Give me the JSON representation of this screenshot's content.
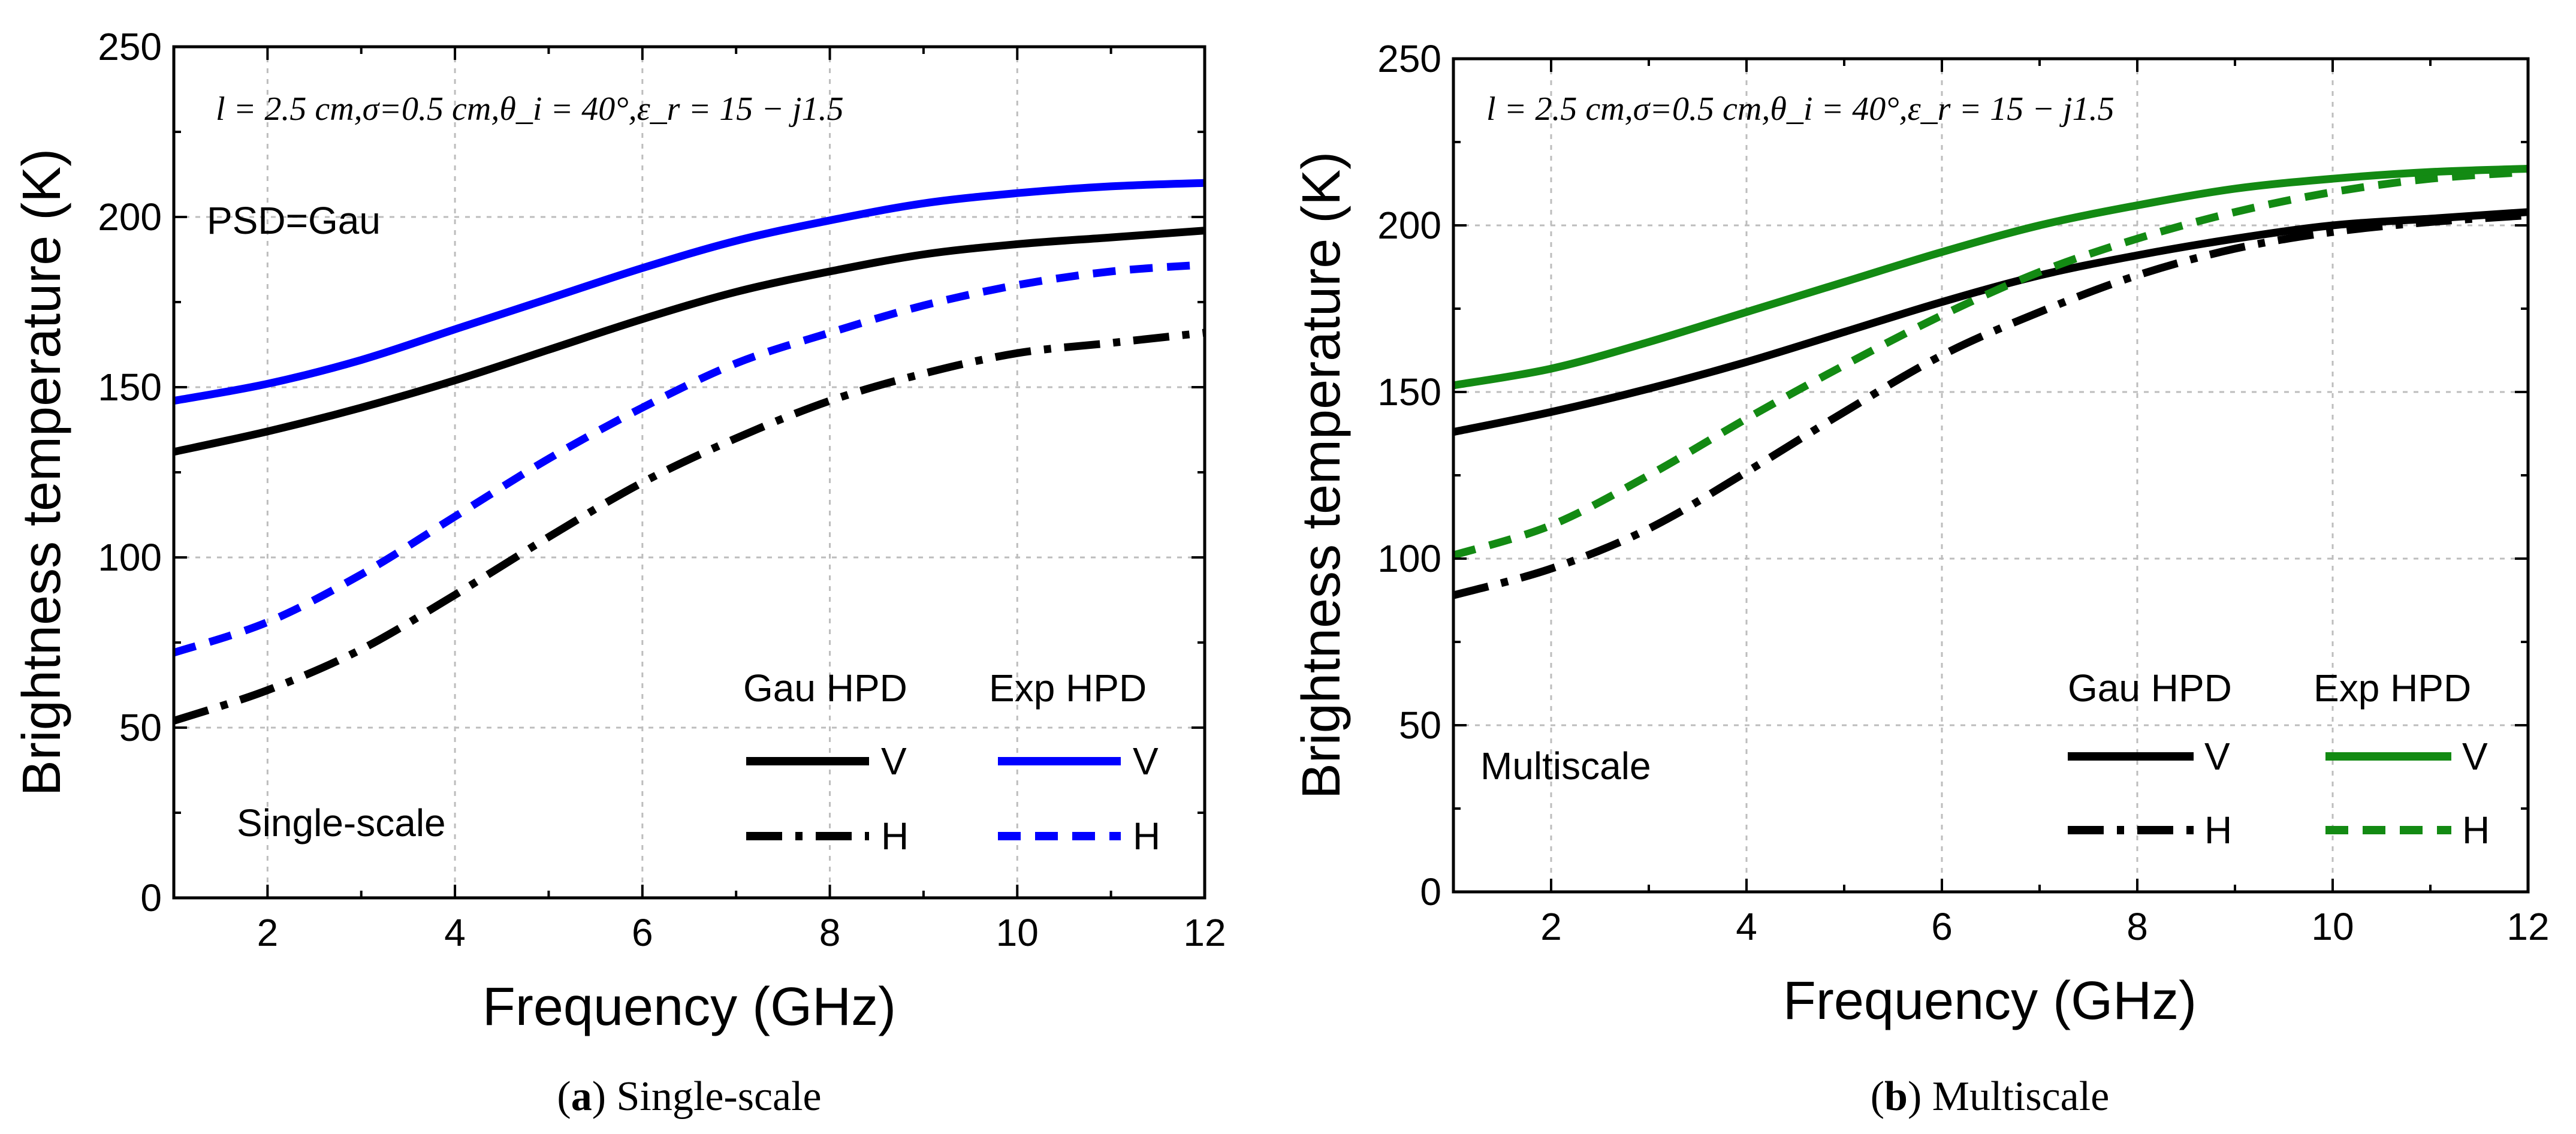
{
  "chart_data": [
    {
      "type": "line",
      "id": "a",
      "xlabel": "Frequency (GHz)",
      "ylabel": "Brightness temperature (K)",
      "xlim": [
        1,
        12
      ],
      "ylim": [
        0,
        250
      ],
      "xticks": [
        2,
        4,
        6,
        8,
        10,
        12
      ],
      "yticks": [
        0,
        50,
        100,
        150,
        200,
        250
      ],
      "grid": true,
      "annotation": "l = 2.5 cm,σ=0.5 cm,θ_i = 40°,ε_r = 15 − j1.5",
      "psd_label": "PSD=Gau",
      "scale_label": "Single-scale",
      "legend_header_left": "Gau HPD",
      "legend_header_right": "Exp HPD",
      "x": [
        1,
        2,
        3,
        4,
        5,
        6,
        7,
        8,
        9,
        10,
        11,
        12
      ],
      "series": [
        {
          "name": "Gau HPD V",
          "legend_label": "V",
          "color": "#000000",
          "dash": "solid",
          "values": [
            131,
            137,
            144,
            152,
            161,
            170,
            178,
            184,
            189,
            192,
            194,
            196
          ]
        },
        {
          "name": "Gau HPD H",
          "legend_label": "H",
          "color": "#000000",
          "dash": "dashdot",
          "values": [
            52,
            61,
            73,
            89,
            106,
            122,
            135,
            146,
            154,
            160,
            163,
            166
          ]
        },
        {
          "name": "Exp HPD V",
          "legend_label": "V",
          "color": "#0000ff",
          "dash": "solid",
          "values": [
            146,
            151,
            158,
            167,
            176,
            185,
            193,
            199,
            204,
            207,
            209,
            210
          ]
        },
        {
          "name": "Exp HPD H",
          "legend_label": "H",
          "color": "#0000ff",
          "dash": "dash",
          "values": [
            72,
            81,
            95,
            112,
            129,
            144,
            157,
            166,
            174,
            180,
            184,
            186
          ]
        }
      ],
      "caption_tag": "a",
      "caption_text": "Single-scale"
    },
    {
      "type": "line",
      "id": "b",
      "xlabel": "Frequency (GHz)",
      "ylabel": "Brightness temperature (K)",
      "xlim": [
        1,
        12
      ],
      "ylim": [
        0,
        250
      ],
      "xticks": [
        2,
        4,
        6,
        8,
        10,
        12
      ],
      "yticks": [
        0,
        50,
        100,
        150,
        200,
        250
      ],
      "grid": true,
      "annotation": "l = 2.5 cm,σ=0.5 cm,θ_i = 40°,ε_r = 15 − j1.5",
      "scale_label": "Multiscale",
      "legend_header_left": "Gau HPD",
      "legend_header_right": "Exp HPD",
      "x": [
        1,
        2,
        3,
        4,
        5,
        6,
        7,
        8,
        9,
        10,
        11,
        12
      ],
      "series": [
        {
          "name": "Gau HPD V",
          "legend_label": "V",
          "color": "#000000",
          "dash": "solid",
          "values": [
            138,
            144,
            151,
            159,
            168,
            177,
            185,
            191,
            196,
            200,
            202,
            204
          ]
        },
        {
          "name": "Gau HPD H",
          "legend_label": "H",
          "color": "#000000",
          "dash": "dashdot",
          "values": [
            89,
            97,
            109,
            126,
            144,
            161,
            174,
            185,
            193,
            198,
            201,
            203
          ]
        },
        {
          "name": "Exp HPD V",
          "legend_label": "V",
          "color": "#138a13",
          "dash": "solid",
          "values": [
            152,
            157,
            165,
            174,
            183,
            192,
            200,
            206,
            211,
            214,
            216,
            217
          ]
        },
        {
          "name": "Exp HPD H",
          "legend_label": "H",
          "color": "#138a13",
          "dash": "dash",
          "values": [
            101,
            110,
            125,
            142,
            158,
            173,
            186,
            196,
            204,
            210,
            214,
            216
          ]
        }
      ],
      "caption_tag": "b",
      "caption_text": "Multiscale"
    }
  ]
}
